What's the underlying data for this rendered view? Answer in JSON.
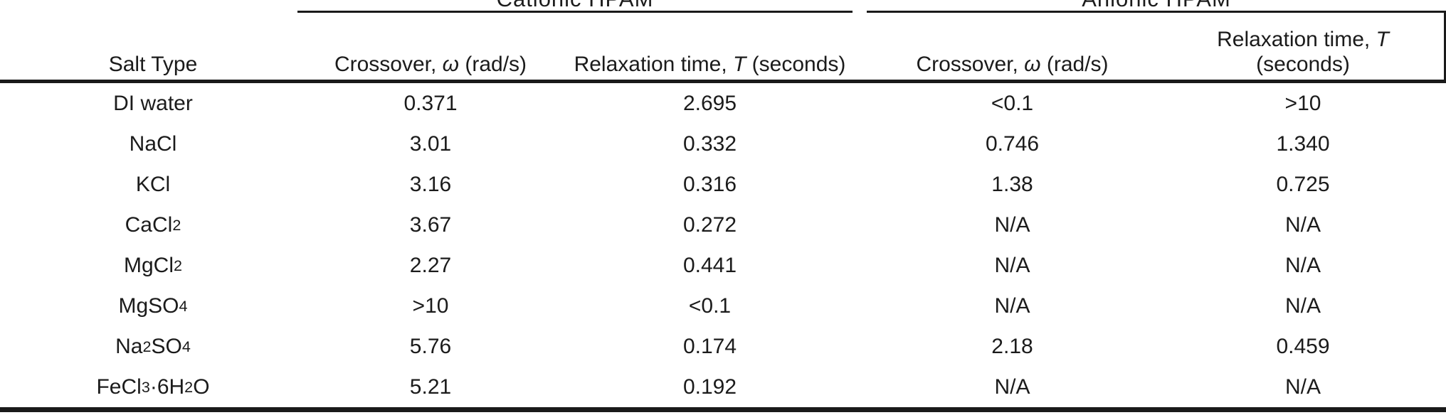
{
  "page": {
    "background": "#ffffff",
    "text_color": "#1b1b1b",
    "rule_color": "#1a1a1a"
  },
  "table": {
    "group_headers": [
      {
        "label": "Cationic HPAM"
      },
      {
        "label": "Anionic HPAM"
      }
    ],
    "column_headers": [
      "Salt Type",
      "Crossover, ω (rad/s)",
      "Relaxation time, T (seconds)",
      "Crossover, ω (rad/s)",
      "Relaxation time, T (seconds)"
    ],
    "rows": [
      [
        "DI water",
        "0.371",
        "2.695",
        "<0.1",
        ">10"
      ],
      [
        "NaCl",
        "3.01",
        "0.332",
        "0.746",
        "1.340"
      ],
      [
        "KCl",
        "3.16",
        "0.316",
        "1.38",
        "0.725"
      ],
      [
        "CaCl₂",
        "3.67",
        "0.272",
        "N/A",
        "N/A"
      ],
      [
        "MgCl₂",
        "2.27",
        "0.441",
        "N/A",
        "N/A"
      ],
      [
        "MgSO₄",
        ">10",
        "<0.1",
        "N/A",
        "N/A"
      ],
      [
        "Na₂SO₄",
        "5.76",
        "0.174",
        "2.18",
        "0.459"
      ],
      [
        "FeCl₃·6H₂O",
        "5.21",
        "0.192",
        "N/A",
        "N/A"
      ]
    ]
  }
}
